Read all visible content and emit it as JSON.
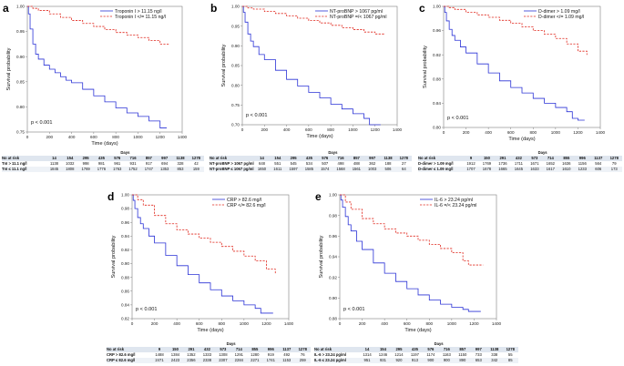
{
  "colors": {
    "high": "#2b33d6",
    "low": "#e0281e",
    "frame": "#7f7f7f",
    "table_header_bg": "#dfe6ef"
  },
  "chart_data": [
    {
      "panel": "a",
      "type": "line",
      "ylabel": "Survival probability",
      "xlabel": "Time (days)",
      "xlim": [
        0,
        1400
      ],
      "ylim": [
        0.75,
        1.0
      ],
      "xticks": [
        "0",
        "200",
        "400",
        "600",
        "800",
        "1000",
        "1200",
        "1400"
      ],
      "yticks": [
        "0.75",
        "0.80",
        "0.85",
        "0.90",
        "0.95",
        "1.00"
      ],
      "p_value": "p < 0.001",
      "legend": [
        "Troponin I > 11.15 ng/l",
        "Troponin I </= 11.15 ng/l"
      ],
      "series": [
        {
          "name": "Troponin I > 11.15 ng/l",
          "style": "solid",
          "color": "high",
          "x": [
            0,
            10,
            25,
            50,
            75,
            100,
            150,
            200,
            250,
            300,
            350,
            400,
            500,
            600,
            700,
            800,
            900,
            1000,
            1100,
            1200,
            1260
          ],
          "y": [
            1.0,
            0.985,
            0.955,
            0.925,
            0.905,
            0.895,
            0.883,
            0.875,
            0.868,
            0.86,
            0.853,
            0.848,
            0.835,
            0.822,
            0.81,
            0.798,
            0.788,
            0.781,
            0.772,
            0.758,
            0.758
          ]
        },
        {
          "name": "Troponin I </= 11.15 ng/l",
          "style": "dashed",
          "color": "low",
          "x": [
            0,
            50,
            100,
            200,
            300,
            400,
            500,
            600,
            700,
            800,
            900,
            1000,
            1100,
            1200,
            1280
          ],
          "y": [
            1.0,
            0.996,
            0.992,
            0.985,
            0.978,
            0.972,
            0.966,
            0.96,
            0.954,
            0.948,
            0.943,
            0.938,
            0.932,
            0.925,
            0.923
          ]
        }
      ],
      "risk_table": {
        "title": "Days",
        "header": [
          "No at risk",
          "14",
          "154",
          "295",
          "435",
          "576",
          "716",
          "857",
          "997",
          "1138",
          "1278"
        ],
        "rows": [
          [
            "TnI > 11.1 ng/l",
            "1138",
            "1032",
            "998",
            "981",
            "961",
            "931",
            "917",
            "694",
            "328",
            "42"
          ],
          [
            "TnI ≤ 11.1 ng/l",
            "1845",
            "1808",
            "1769",
            "1776",
            "1763",
            "1752",
            "1747",
            "1353",
            "853",
            "159"
          ]
        ]
      }
    },
    {
      "panel": "b",
      "type": "line",
      "ylabel": "Survival probability",
      "xlabel": "Time (days)",
      "xlim": [
        0,
        1400
      ],
      "ylim": [
        0.7,
        1.0
      ],
      "xticks": [
        "0",
        "200",
        "400",
        "600",
        "800",
        "1000",
        "1200",
        "1400"
      ],
      "yticks": [
        "0.70",
        "0.75",
        "0.80",
        "0.85",
        "0.90",
        "0.95",
        "1.00"
      ],
      "p_value": "p < 0.001",
      "legend": [
        "NT-proBNP > 1067 pg/ml",
        "NT-proBNP =/< 1067 pg/ml"
      ],
      "series": [
        {
          "name": "NT-proBNP > 1067 pg/ml",
          "style": "solid",
          "color": "high",
          "x": [
            0,
            10,
            25,
            50,
            75,
            100,
            150,
            200,
            300,
            400,
            500,
            600,
            700,
            800,
            900,
            1000,
            1100,
            1150,
            1200,
            1250
          ],
          "y": [
            1.0,
            0.985,
            0.96,
            0.93,
            0.912,
            0.898,
            0.878,
            0.865,
            0.838,
            0.815,
            0.798,
            0.782,
            0.768,
            0.752,
            0.74,
            0.728,
            0.716,
            0.7,
            0.7,
            0.7
          ]
        },
        {
          "name": "NT-proBNP =/< 1067 pg/ml",
          "style": "dashed",
          "color": "low",
          "x": [
            0,
            50,
            100,
            200,
            300,
            400,
            500,
            600,
            700,
            800,
            900,
            1000,
            1100,
            1200,
            1280
          ],
          "y": [
            1.0,
            0.996,
            0.993,
            0.987,
            0.982,
            0.976,
            0.97,
            0.964,
            0.958,
            0.952,
            0.946,
            0.941,
            0.935,
            0.93,
            0.928
          ]
        }
      ],
      "risk_table": {
        "title": "Days",
        "header": [
          "No at risk",
          "14",
          "154",
          "295",
          "435",
          "576",
          "716",
          "857",
          "997",
          "1138",
          "1278"
        ],
        "rows": [
          [
            "NT-proBNP > 1067 pg/ml",
            "648",
            "551",
            "545",
            "534",
            "507",
            "498",
            "488",
            "362",
            "188",
            "27"
          ],
          [
            "NT-proBNP ≤ 1067 pg/ml",
            "1650",
            "1611",
            "1597",
            "1585",
            "1574",
            "1568",
            "1561",
            "1003",
            "506",
            "64"
          ]
        ]
      }
    },
    {
      "panel": "c",
      "type": "line",
      "ylabel": "Survival probability",
      "xlabel": "Time (days)",
      "xlim": [
        0,
        1400
      ],
      "ylim": [
        0.8,
        1.0
      ],
      "xticks": [
        "0",
        "200",
        "400",
        "600",
        "800",
        "1000",
        "1200",
        "1400"
      ],
      "yticks": [
        "0.80",
        "0.84",
        "0.88",
        "0.92",
        "0.96",
        "1.00"
      ],
      "p_value": "p < 0.001",
      "legend": [
        "D-dimer > 1.09 mg/l",
        "D-dimer </= 1.09 mg/l"
      ],
      "series": [
        {
          "name": "D-dimer > 1.09 mg/l",
          "style": "solid",
          "color": "high",
          "x": [
            0,
            10,
            25,
            50,
            75,
            100,
            150,
            200,
            300,
            400,
            500,
            600,
            700,
            800,
            900,
            1000,
            1100,
            1150,
            1200,
            1260
          ],
          "y": [
            1.0,
            0.99,
            0.976,
            0.962,
            0.952,
            0.944,
            0.933,
            0.923,
            0.905,
            0.89,
            0.877,
            0.866,
            0.857,
            0.848,
            0.84,
            0.833,
            0.826,
            0.815,
            0.812,
            0.812
          ]
        },
        {
          "name": "D-dimer </= 1.09 mg/l",
          "style": "dashed",
          "color": "low",
          "x": [
            0,
            50,
            100,
            200,
            300,
            400,
            500,
            600,
            700,
            800,
            900,
            1000,
            1100,
            1200,
            1280
          ],
          "y": [
            1.0,
            0.998,
            0.995,
            0.99,
            0.986,
            0.982,
            0.977,
            0.972,
            0.966,
            0.96,
            0.954,
            0.947,
            0.938,
            0.926,
            0.92
          ]
        }
      ],
      "risk_table": {
        "title": "Days",
        "header": [
          "No at risk",
          "9",
          "150",
          "291",
          "432",
          "573",
          "714",
          "855",
          "996",
          "1137",
          "1278"
        ],
        "rows": [
          [
            "D-dimer > 1.09 mg/l",
            "1912",
            "1769",
            "1736",
            "1711",
            "1671",
            "1652",
            "1636",
            "1156",
            "564",
            "79"
          ],
          [
            "D-dimer ≤ 1.09 mg/l",
            "1707",
            "1678",
            "1665",
            "1645",
            "1633",
            "1617",
            "1610",
            "1233",
            "606",
            "173"
          ]
        ]
      }
    },
    {
      "panel": "d",
      "type": "line",
      "ylabel": "Survival probability",
      "xlabel": "Time (days)",
      "xlim": [
        0,
        1400
      ],
      "ylim": [
        0.82,
        1.0
      ],
      "xticks": [
        "0",
        "200",
        "400",
        "600",
        "800",
        "1000",
        "1200",
        "1400"
      ],
      "yticks": [
        "0.82",
        "0.84",
        "0.86",
        "0.88",
        "0.90",
        "0.92",
        "0.94",
        "0.96",
        "0.98",
        "1.00"
      ],
      "p_value": "p < 0.001",
      "legend": [
        "CRP > 82.6 mg/l",
        "CRP </= 82.6 mg/l"
      ],
      "series": [
        {
          "name": "CRP > 82.6 mg/l",
          "style": "solid",
          "color": "high",
          "x": [
            0,
            10,
            25,
            50,
            75,
            100,
            150,
            200,
            300,
            400,
            500,
            600,
            700,
            800,
            900,
            1000,
            1100,
            1150,
            1200,
            1260
          ],
          "y": [
            1.0,
            0.992,
            0.98,
            0.967,
            0.958,
            0.951,
            0.94,
            0.93,
            0.912,
            0.897,
            0.884,
            0.872,
            0.862,
            0.853,
            0.846,
            0.84,
            0.835,
            0.828,
            0.828,
            0.828
          ]
        },
        {
          "name": "CRP </= 82.6 mg/l",
          "style": "dashed",
          "color": "low",
          "x": [
            0,
            50,
            100,
            200,
            300,
            400,
            500,
            600,
            700,
            800,
            900,
            1000,
            1100,
            1200,
            1280
          ],
          "y": [
            1.0,
            0.993,
            0.985,
            0.97,
            0.958,
            0.949,
            0.943,
            0.937,
            0.931,
            0.925,
            0.918,
            0.911,
            0.904,
            0.892,
            0.885
          ]
        }
      ],
      "risk_table": {
        "title": "Days",
        "header": [
          "No at risk",
          "9",
          "150",
          "291",
          "432",
          "573",
          "714",
          "855",
          "996",
          "1137",
          "1278"
        ],
        "rows": [
          [
            "CRP > 82.6 mg/l",
            "1488",
            "1384",
            "1352",
            "1333",
            "1308",
            "1291",
            "1280",
            "919",
            "492",
            "76"
          ],
          [
            "CRP ≤ 82.6 mg/l",
            "2471",
            "2423",
            "2356",
            "2338",
            "2307",
            "2284",
            "2271",
            "1741",
            "1153",
            "259"
          ]
        ]
      }
    },
    {
      "panel": "e",
      "type": "line",
      "ylabel": "Survival probability",
      "xlabel": "Time (days)",
      "xlim": [
        0,
        1400
      ],
      "ylim": [
        0.88,
        1.0
      ],
      "xticks": [
        "0",
        "200",
        "400",
        "600",
        "800",
        "1000",
        "1200",
        "1400"
      ],
      "yticks": [
        "0.88",
        "0.90",
        "0.92",
        "0.94",
        "0.96",
        "0.98",
        "1.00"
      ],
      "p_value": "p < 0.001",
      "legend": [
        "IL-6 > 23.24 pg/ml",
        "IL-6 =/< 23.24 pg/ml"
      ],
      "series": [
        {
          "name": "IL-6 > 23.24 pg/ml",
          "style": "solid",
          "color": "high",
          "x": [
            0,
            10,
            25,
            50,
            75,
            100,
            150,
            200,
            300,
            400,
            500,
            600,
            700,
            800,
            900,
            1000,
            1100,
            1150,
            1200,
            1260
          ],
          "y": [
            1.0,
            0.995,
            0.988,
            0.979,
            0.971,
            0.965,
            0.955,
            0.947,
            0.934,
            0.924,
            0.916,
            0.909,
            0.903,
            0.898,
            0.894,
            0.891,
            0.889,
            0.887,
            0.887,
            0.887
          ]
        },
        {
          "name": "IL-6 =/< 23.24 pg/ml",
          "style": "dashed",
          "color": "low",
          "x": [
            0,
            50,
            100,
            200,
            300,
            400,
            500,
            600,
            700,
            800,
            900,
            1000,
            1100,
            1150,
            1280
          ],
          "y": [
            1.0,
            0.993,
            0.986,
            0.977,
            0.972,
            0.967,
            0.963,
            0.96,
            0.956,
            0.952,
            0.948,
            0.944,
            0.936,
            0.932,
            0.932
          ]
        }
      ],
      "risk_table": {
        "title": "Days",
        "header": [
          "No at risk",
          "14",
          "154",
          "295",
          "435",
          "576",
          "716",
          "857",
          "997",
          "1138",
          "1278"
        ],
        "rows": [
          [
            "IL-6 > 23.24 pg/ml",
            "1314",
            "1246",
            "1214",
            "1197",
            "1174",
            "1163",
            "1150",
            "733",
            "338",
            "55"
          ],
          [
            "IL-6 ≤ 23.24 pg/ml",
            "951",
            "931",
            "920",
            "913",
            "900",
            "900",
            "890",
            "653",
            "342",
            "85"
          ]
        ]
      }
    }
  ]
}
